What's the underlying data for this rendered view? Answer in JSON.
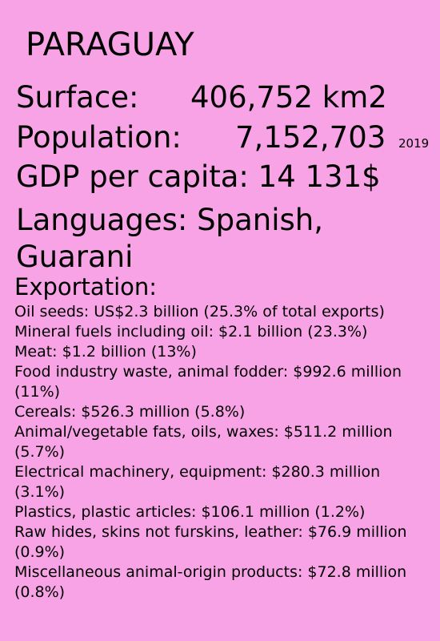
{
  "title": "PARAGUAY",
  "surface": {
    "label": "Surface:",
    "value": "406,752 km2"
  },
  "population": {
    "label": "Population:",
    "value": "7,152,703",
    "year": "2019"
  },
  "gdp": {
    "text": "GDP per capita: 14 131$"
  },
  "languages": {
    "text": "Languages: Spanish, Guarani"
  },
  "exportation": {
    "heading": "Exportation:",
    "items": [
      "Oil seeds: US$2.3 billion (25.3% of total exports)",
      "Mineral fuels including oil: $2.1 billion (23.3%)",
      "Meat: $1.2 billion (13%)",
      "Food industry waste, animal fodder: $992.6 million (11%)",
      "Cereals: $526.3 million (5.8%)",
      "Animal/vegetable fats, oils, waxes: $511.2 million (5.7%)",
      "Electrical machinery, equipment: $280.3 million (3.1%)",
      "Plastics, plastic articles: $106.1 million (1.2%)",
      "Raw hides, skins not furskins, leather: $76.9 million (0.9%)",
      "Miscellaneous animal-origin products: $72.8 million (0.8%)"
    ]
  },
  "colors": {
    "background": "#f7a3e5",
    "text": "#000000"
  }
}
